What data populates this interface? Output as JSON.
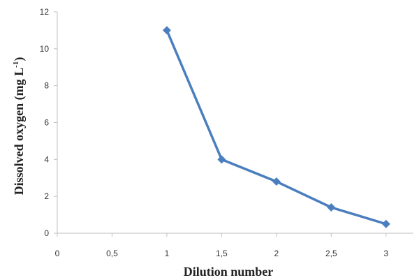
{
  "chart_data": {
    "type": "line",
    "xlabel": "Dilution number",
    "ylabel_main": "Dissolved oxygen  (mg L",
    "ylabel_sup": "-1",
    "ylabel_close": ")",
    "x_ticks": [
      "0",
      "0,5",
      "1",
      "1,5",
      "2",
      "2,5",
      "3"
    ],
    "x_tick_values": [
      0,
      0.5,
      1,
      1.5,
      2,
      2.5,
      3
    ],
    "y_ticks": [
      "0",
      "2",
      "4",
      "6",
      "8",
      "10",
      "12"
    ],
    "y_tick_values": [
      0,
      2,
      4,
      6,
      8,
      10,
      12
    ],
    "xlim": [
      0,
      3.25
    ],
    "ylim": [
      0,
      12
    ],
    "grid": false,
    "series": [
      {
        "color": "#4a7ebf",
        "marker": "diamond",
        "x": [
          1,
          1.5,
          2,
          2.5,
          3
        ],
        "y": [
          11,
          4,
          2.8,
          1.4,
          0.5
        ]
      }
    ]
  }
}
